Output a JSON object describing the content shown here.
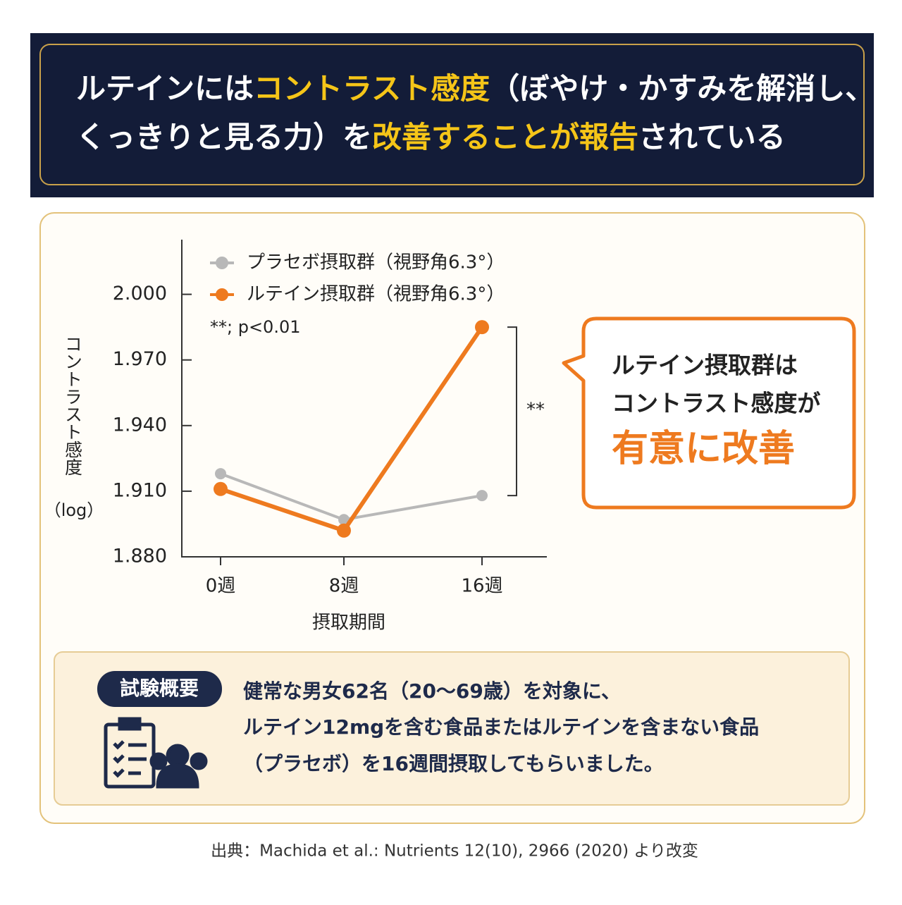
{
  "header": {
    "lines": [
      [
        {
          "text": "ルテインには",
          "highlight": false
        },
        {
          "text": "コントラスト感度",
          "highlight": true
        },
        {
          "text": "（ぼやけ・かすみを解消し、",
          "highlight": false
        }
      ],
      [
        {
          "text": "くっきりと見る力）を",
          "highlight": false
        },
        {
          "text": "改善することが報告",
          "highlight": true
        },
        {
          "text": "されている",
          "highlight": false
        }
      ]
    ]
  },
  "chart_data": {
    "type": "line",
    "categories": [
      "0週",
      "8週",
      "16週"
    ],
    "series": [
      {
        "name": "プラセボ摂取群（視野角6.3°）",
        "color": "#b8b8b8",
        "values": [
          1.918,
          1.897,
          1.908
        ]
      },
      {
        "name": "ルテイン摂取群（視野角6.3°）",
        "color": "#ee7a1f",
        "values": [
          1.911,
          1.892,
          1.985
        ]
      }
    ],
    "ylim": [
      1.88,
      2.025
    ],
    "yticks": [
      {
        "value": 1.88,
        "label": "1.880"
      },
      {
        "value": 1.91,
        "label": "1.910"
      },
      {
        "value": 1.94,
        "label": "1.940"
      },
      {
        "value": 1.97,
        "label": "1.970"
      },
      {
        "value": 2,
        "label": "2.000"
      }
    ],
    "y_label": "コントラスト感度",
    "y_unit": "（log）",
    "x_label": "摂取期間",
    "annotation": "**; p<0.01",
    "significance": "**"
  },
  "callout": {
    "lines": [
      "ルテイン摂取群は",
      "コントラスト感度が"
    ],
    "emphasis": "有意に改善"
  },
  "summary": {
    "badge": "試験概要",
    "lines": [
      "健常な男女62名（20〜69歳）を対象に、",
      "ルテイン12mgを含む食品またはルテインを含まない食品",
      "（プラセボ）を16週間摂取してもらいました。"
    ]
  },
  "source": "出典：Machida et al.: Nutrients 12(10), 2966 (2020) より改変"
}
